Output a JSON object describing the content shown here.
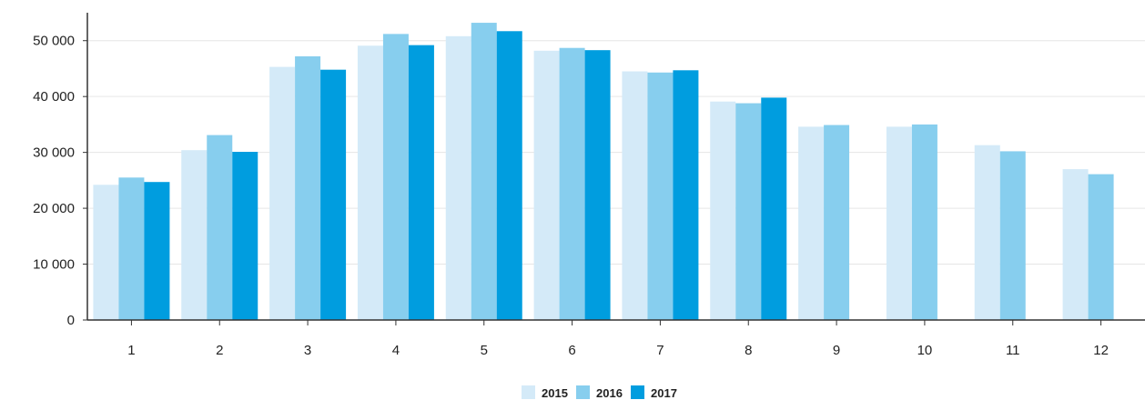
{
  "chart_data": {
    "type": "bar",
    "categories": [
      "1",
      "2",
      "3",
      "4",
      "5",
      "6",
      "7",
      "8",
      "9",
      "10",
      "11",
      "12"
    ],
    "series": [
      {
        "name": "2015",
        "color": "#d4eaf8",
        "values": [
          24200,
          30400,
          45300,
          49100,
          50800,
          48200,
          44500,
          39100,
          34600,
          34600,
          31300,
          27000
        ]
      },
      {
        "name": "2016",
        "color": "#87ceee",
        "values": [
          25500,
          33100,
          47200,
          51200,
          53200,
          48700,
          44300,
          38800,
          34900,
          35000,
          30200,
          26100
        ]
      },
      {
        "name": "2017",
        "color": "#009ddf",
        "values": [
          24700,
          30100,
          44800,
          49200,
          51700,
          48300,
          44700,
          39800,
          null,
          null,
          null,
          null
        ]
      }
    ],
    "y_ticks": [
      0,
      10000,
      20000,
      30000,
      40000,
      50000
    ],
    "y_tick_labels": [
      "0",
      "10 000",
      "20 000",
      "30 000",
      "40 000",
      "50 000"
    ],
    "ylim": [
      0,
      55000
    ],
    "grid": true,
    "legend_position": "bottom-center",
    "title": "",
    "xlabel": "",
    "ylabel": ""
  }
}
